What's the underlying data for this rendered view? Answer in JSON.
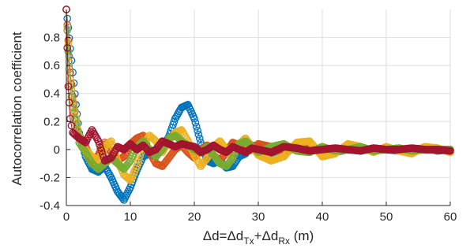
{
  "chart_data": {
    "type": "scatter",
    "xlabel": "Δd=Δd_Tx+Δd_Rx (m)",
    "xlabel_parts": {
      "a": "Δd=Δd",
      "b": "Tx",
      "c": "+Δd",
      "d": "Rx",
      "e": " (m)"
    },
    "ylabel": "Autocorrelation coefficient",
    "xlim": [
      0,
      60
    ],
    "ylim": [
      -0.4,
      1.0
    ],
    "x_ticks": [
      0,
      10,
      20,
      30,
      40,
      50,
      60
    ],
    "x_tick_labels": [
      "0",
      "10",
      "20",
      "30",
      "40",
      "50",
      "60"
    ],
    "y_ticks": [
      -0.4,
      -0.2,
      0,
      0.2,
      0.4,
      0.6,
      0.8
    ],
    "y_tick_labels": [
      "-0.4",
      "-0.2",
      "0",
      "0.2",
      "0.4",
      "0.6",
      "0.8"
    ],
    "grid": true,
    "marker": "open-circle",
    "series": [
      {
        "color": "#0072BD",
        "x": [
          0,
          0.3,
          0.6,
          1,
          1.5,
          2,
          3,
          4,
          5,
          6,
          7,
          8,
          9,
          10,
          11,
          12,
          13,
          14,
          15,
          16,
          17,
          18,
          19,
          20,
          21,
          22,
          23,
          24,
          25,
          26,
          27,
          28,
          29,
          30,
          32,
          34,
          36,
          38,
          40,
          42,
          44,
          46,
          48,
          50,
          52,
          54,
          56,
          58,
          60
        ],
        "y": [
          1.0,
          0.87,
          0.72,
          0.55,
          0.32,
          0.12,
          -0.05,
          -0.14,
          -0.16,
          -0.12,
          -0.2,
          -0.3,
          -0.36,
          -0.27,
          -0.15,
          -0.05,
          -0.03,
          -0.05,
          0.01,
          0.09,
          0.22,
          0.3,
          0.32,
          0.22,
          0.05,
          -0.08,
          -0.1,
          -0.08,
          -0.13,
          -0.12,
          -0.05,
          -0.03,
          0.03,
          0.02,
          -0.04,
          -0.01,
          0.02,
          -0.01,
          0.01,
          -0.02,
          0.0,
          -0.01,
          0.01,
          0.0,
          -0.01,
          0.0,
          0.01,
          -0.01,
          0.0
        ]
      },
      {
        "color": "#D95319",
        "x": [
          0,
          0.3,
          0.6,
          1,
          1.5,
          2,
          3,
          4,
          5,
          6,
          7,
          8,
          9,
          10,
          11,
          12,
          13,
          14,
          15,
          16,
          17,
          18,
          19,
          20,
          21,
          22,
          23,
          24,
          25,
          26,
          27,
          28,
          29,
          30,
          32,
          34,
          36,
          38,
          40,
          42,
          44,
          46,
          48,
          50,
          52,
          54,
          56,
          58,
          60
        ],
        "y": [
          1.0,
          0.78,
          0.55,
          0.38,
          0.22,
          0.08,
          0.02,
          -0.08,
          -0.04,
          0.05,
          -0.02,
          -0.08,
          -0.05,
          0.04,
          0.08,
          0.1,
          -0.02,
          -0.1,
          -0.12,
          -0.06,
          0.0,
          0.03,
          -0.02,
          -0.06,
          0.0,
          0.03,
          -0.04,
          -0.08,
          -0.02,
          0.05,
          0.03,
          -0.02,
          0.0,
          0.04,
          0.02,
          -0.03,
          0.02,
          0.01,
          -0.02,
          0.01,
          0.0,
          0.01,
          -0.01,
          0.0,
          0.01,
          -0.01,
          0.0,
          0.0,
          0.0
        ]
      },
      {
        "color": "#EDB120",
        "x": [
          0,
          0.3,
          0.6,
          1,
          1.5,
          2,
          3,
          4,
          5,
          6,
          7,
          8,
          9,
          10,
          11,
          12,
          13,
          14,
          15,
          16,
          17,
          18,
          19,
          20,
          21,
          22,
          23,
          24,
          25,
          26,
          27,
          28,
          29,
          30,
          32,
          34,
          36,
          38,
          40,
          42,
          44,
          46,
          48,
          50,
          52,
          54,
          56,
          58,
          60
        ],
        "y": [
          1.0,
          0.75,
          0.5,
          0.35,
          0.22,
          0.1,
          0.0,
          -0.05,
          -0.08,
          0.02,
          0.06,
          -0.08,
          -0.18,
          -0.22,
          -0.12,
          0.03,
          0.1,
          0.06,
          -0.02,
          0.06,
          0.12,
          0.14,
          0.06,
          -0.04,
          -0.12,
          -0.06,
          0.02,
          0.06,
          0.0,
          -0.06,
          0.04,
          0.08,
          0.02,
          -0.04,
          -0.08,
          -0.05,
          0.05,
          0.06,
          -0.05,
          -0.03,
          0.04,
          0.02,
          -0.02,
          0.02,
          -0.01,
          -0.03,
          0.02,
          0.01,
          -0.02
        ]
      },
      {
        "color": "#77AC30",
        "x": [
          0,
          0.3,
          0.6,
          1,
          1.5,
          2,
          3,
          4,
          5,
          6,
          7,
          8,
          9,
          10,
          11,
          12,
          13,
          14,
          15,
          16,
          17,
          18,
          19,
          20,
          21,
          22,
          23,
          24,
          25,
          26,
          27,
          28,
          29,
          30,
          32,
          34,
          36,
          38,
          40,
          42,
          44,
          46,
          48,
          50,
          52,
          54,
          56,
          58,
          60
        ],
        "y": [
          1.0,
          0.7,
          0.45,
          0.3,
          0.18,
          0.05,
          -0.02,
          -0.1,
          -0.14,
          -0.1,
          -0.06,
          -0.1,
          -0.14,
          -0.08,
          0.02,
          0.06,
          0.0,
          -0.05,
          0.0,
          0.08,
          0.1,
          0.06,
          0.03,
          0.0,
          -0.02,
          0.02,
          -0.04,
          -0.1,
          -0.12,
          -0.06,
          0.04,
          0.06,
          0.02,
          -0.02,
          0.02,
          0.04,
          -0.01,
          -0.02,
          0.02,
          -0.01,
          0.0,
          0.02,
          -0.01,
          0.0,
          0.01,
          -0.01,
          0.0,
          0.0,
          0.0
        ]
      },
      {
        "color": "#A2142F",
        "x": [
          0,
          0.3,
          0.6,
          1,
          1.5,
          2,
          3,
          4,
          5,
          6,
          7,
          8,
          9,
          10,
          11,
          12,
          13,
          14,
          15,
          16,
          17,
          18,
          19,
          20,
          21,
          22,
          23,
          24,
          25,
          26,
          27,
          28,
          29,
          30,
          32,
          34,
          36,
          38,
          40,
          42,
          44,
          46,
          48,
          50,
          52,
          54,
          56,
          58,
          60
        ],
        "y": [
          1.0,
          0.45,
          0.22,
          0.12,
          0.1,
          0.08,
          0.05,
          0.14,
          0.06,
          -0.08,
          -0.06,
          0.02,
          0.0,
          0.04,
          0.0,
          0.03,
          -0.02,
          0.0,
          0.06,
          0.04,
          0.02,
          0.04,
          0.03,
          0.02,
          -0.02,
          0.0,
          0.03,
          0.0,
          -0.02,
          0.02,
          0.0,
          -0.02,
          0.01,
          0.0,
          -0.02,
          0.02,
          0.01,
          -0.01,
          0.0,
          0.01,
          0.0,
          -0.01,
          0.01,
          0.0,
          0.0,
          0.01,
          0.0,
          0.0,
          -0.01
        ]
      }
    ]
  }
}
